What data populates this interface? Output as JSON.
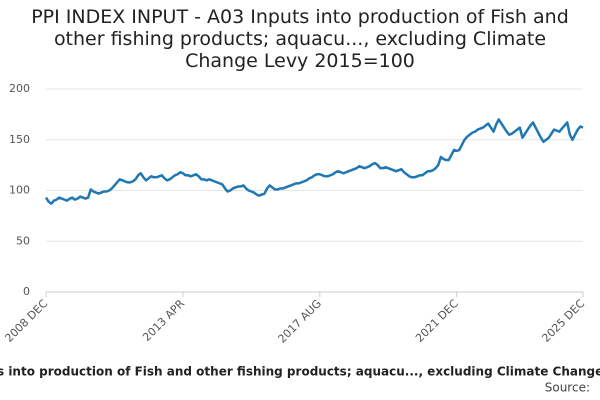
{
  "chart_data": {
    "type": "line",
    "title": "PPI INDEX INPUT - A03 Inputs into production of Fish and other fishing products; aquacu..., excluding Climate Change Levy 2015=100",
    "source": "Source:",
    "categories": [
      "2008 DEC",
      null,
      null,
      null,
      null,
      null,
      null,
      null,
      null,
      null,
      null,
      null,
      null,
      null,
      null,
      null,
      null,
      null,
      null,
      null,
      null,
      null,
      null,
      null,
      null,
      null,
      null,
      null,
      null,
      null,
      null,
      null,
      null,
      null,
      null,
      null,
      null,
      null,
      null,
      null,
      null,
      null,
      null,
      null,
      null,
      null,
      null,
      null,
      null,
      null,
      null,
      null,
      "2013 APR",
      null,
      null,
      null,
      null,
      null,
      null,
      null,
      null,
      null,
      null,
      null,
      null,
      null,
      null,
      null,
      null,
      null,
      null,
      null,
      null,
      null,
      null,
      null,
      null,
      null,
      null,
      null,
      null,
      null,
      null,
      null,
      null,
      null,
      null,
      null,
      null,
      null,
      null,
      null,
      null,
      null,
      null,
      null,
      null,
      null,
      null,
      null,
      null,
      null,
      null,
      null,
      "2017 AUG",
      null,
      null,
      null,
      null,
      null,
      null,
      null,
      null,
      null,
      null,
      null,
      null,
      null,
      null,
      null,
      null,
      null,
      null,
      null,
      null,
      null,
      null,
      null,
      null,
      null,
      null,
      null,
      null,
      null,
      null,
      null,
      null,
      null,
      null,
      null,
      null,
      null,
      null,
      null,
      null,
      null,
      null,
      null,
      null,
      null,
      null,
      null,
      null,
      null,
      null,
      null,
      "2021 DEC",
      null,
      null,
      null,
      null,
      null,
      null,
      null,
      null,
      null,
      null,
      null,
      null,
      null,
      null,
      null,
      null,
      null,
      null,
      null,
      null,
      null,
      null,
      null,
      null,
      null,
      null,
      null,
      null,
      null,
      null,
      null,
      null,
      null,
      null,
      null,
      null,
      null,
      null,
      null,
      null,
      null,
      null,
      null,
      null,
      null,
      null,
      null,
      "2025 DEC"
    ],
    "series": [
      {
        "name": "Inputs into production of Fish and other fishing products; aquacu..., excluding Climate Change Levy",
        "color": "#1f78b4",
        "values": [
          93,
          89,
          87,
          90,
          91,
          93,
          92,
          91,
          90,
          92,
          93,
          91,
          92,
          94,
          93,
          92,
          93,
          101,
          99,
          98,
          97,
          98,
          99,
          99,
          100,
          102,
          105,
          108,
          111,
          110,
          109,
          108,
          108,
          109,
          111,
          115,
          117,
          113,
          110,
          112,
          114,
          113,
          113,
          114,
          115,
          112,
          110,
          111,
          113,
          115,
          116,
          118,
          117,
          115,
          115,
          114,
          115,
          116,
          114,
          111,
          111,
          110,
          111,
          110,
          109,
          108,
          107,
          106,
          102,
          99,
          100,
          102,
          103,
          104,
          104,
          105,
          102,
          100,
          99,
          98,
          96,
          95,
          96,
          97,
          102,
          105,
          103,
          101,
          101,
          102,
          102,
          103,
          104,
          105,
          106,
          107,
          107,
          108,
          109,
          110,
          112,
          113,
          115,
          116,
          116,
          115,
          114,
          114,
          115,
          116,
          118,
          119,
          118,
          117,
          118,
          119,
          120,
          121,
          122,
          124,
          123,
          122,
          123,
          124,
          126,
          127,
          125,
          122,
          122,
          123,
          122,
          121,
          120,
          119,
          120,
          121,
          118,
          116,
          114,
          113,
          113,
          114,
          115,
          115,
          117,
          119,
          119,
          120,
          122,
          125,
          133,
          131,
          130,
          130,
          135,
          140,
          139,
          140,
          145,
          150,
          153,
          155,
          157,
          158,
          160,
          161,
          162,
          164,
          166,
          162,
          158,
          165,
          170,
          166,
          162,
          158,
          155,
          156,
          158,
          160,
          162,
          152,
          156,
          160,
          164,
          167,
          162,
          157,
          152,
          148,
          150,
          152,
          156,
          160,
          159,
          158,
          161,
          164,
          167,
          155,
          150,
          155,
          160,
          163,
          162
        ]
      }
    ],
    "ylim": [
      0,
      200
    ],
    "yticks": [
      0,
      50,
      100,
      150,
      200
    ],
    "grid": true
  }
}
